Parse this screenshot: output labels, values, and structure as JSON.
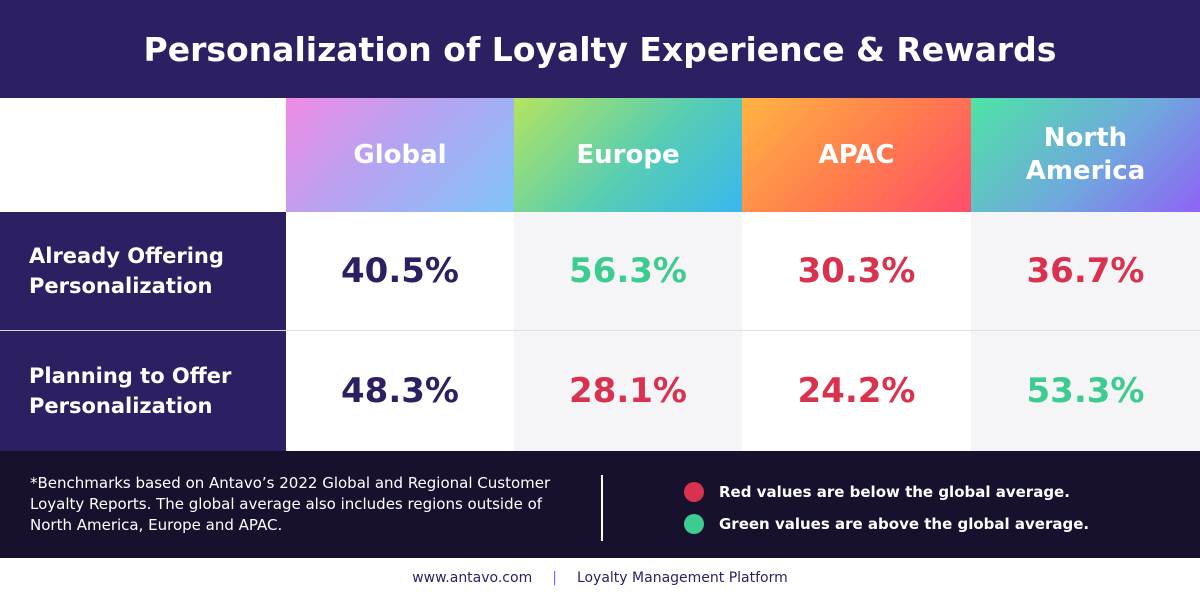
{
  "title": "Personalization of Loyalty Experience & Rewards",
  "colors": {
    "navy": "#2e1f62",
    "dark_footer": "#17112e",
    "below_average_red": "#d9324f",
    "above_average_green": "#3ccc8f"
  },
  "chart_data": {
    "type": "table",
    "title": "Personalization of Loyalty Experience & Rewards",
    "columns": [
      "Global",
      "Europe",
      "APAC",
      "North America"
    ],
    "rows": [
      {
        "label": "Already Offering Personalization",
        "values": [
          "40.5%",
          "56.3%",
          "30.3%",
          "36.7%"
        ],
        "status": [
          "neutral",
          "green",
          "red",
          "red"
        ]
      },
      {
        "label": "Planning to Offer Personalization",
        "values": [
          "48.3%",
          "28.1%",
          "24.2%",
          "53.3%"
        ],
        "status": [
          "neutral",
          "red",
          "red",
          "green"
        ]
      }
    ]
  },
  "footnote": "*Benchmarks based on Antavo’s 2022 Global and Regional Customer Loyalty Reports. The global average also includes regions outside of North America, Europe and APAC.",
  "legend": {
    "red": "Red values are below the global average.",
    "green": "Green values are above the global average."
  },
  "bottom": {
    "website": "www.antavo.com",
    "separator": "|",
    "tagline": "Loyalty Management Platform"
  }
}
